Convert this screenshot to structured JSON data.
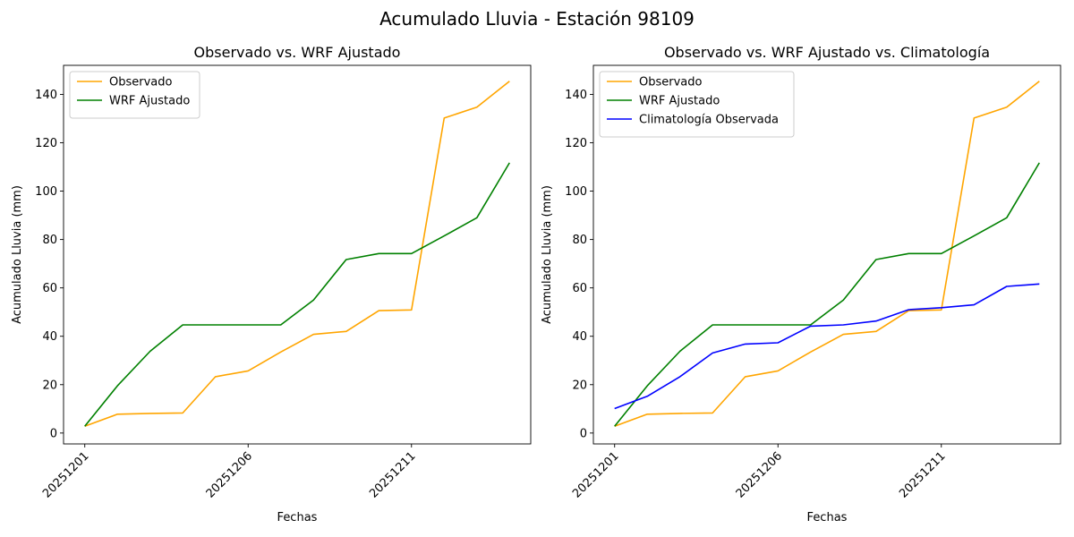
{
  "figure_title": "Acumulado Lluvia - Estación 98109",
  "colors": {
    "Observado": "#ffa500",
    "WRF Ajustado": "#008000",
    "Climatología Observada": "#0000ff"
  },
  "chart_data": [
    {
      "type": "line",
      "title": "Observado vs. WRF Ajustado",
      "xlabel": "Fechas",
      "ylabel": "Acumulado Lluvia (mm)",
      "x": [
        "20251201",
        "20251202",
        "20251203",
        "20251204",
        "20251205",
        "20251206",
        "20251207",
        "20251208",
        "20251209",
        "20251210",
        "20251211",
        "20251212",
        "20251213",
        "20251214"
      ],
      "xticks": [
        "20251201",
        "20251206",
        "20251211"
      ],
      "ylim": [
        -4.5,
        152
      ],
      "yticks": [
        0,
        20,
        40,
        60,
        80,
        100,
        120,
        140
      ],
      "grid": false,
      "legend_position": "upper left",
      "series": [
        {
          "name": "Observado",
          "color": "#ffa500",
          "values": [
            2.8,
            7.8,
            8.1,
            8.3,
            23.3,
            25.7,
            33.5,
            40.8,
            42.0,
            50.6,
            50.9,
            130.2,
            134.7,
            145.4
          ]
        },
        {
          "name": "WRF Ajustado",
          "color": "#008000",
          "values": [
            2.8,
            19.5,
            33.8,
            44.7,
            44.7,
            44.7,
            44.7,
            55.0,
            71.7,
            74.2,
            74.2,
            81.5,
            89.0,
            111.7
          ]
        }
      ]
    },
    {
      "type": "line",
      "title": "Observado vs. WRF Ajustado vs. Climatología",
      "xlabel": "Fechas",
      "ylabel": "Acumulado Lluvia (mm)",
      "x": [
        "20251201",
        "20251202",
        "20251203",
        "20251204",
        "20251205",
        "20251206",
        "20251207",
        "20251208",
        "20251209",
        "20251210",
        "20251211",
        "20251212",
        "20251213",
        "20251214"
      ],
      "xticks": [
        "20251201",
        "20251206",
        "20251211"
      ],
      "ylim": [
        -4.5,
        152
      ],
      "yticks": [
        0,
        20,
        40,
        60,
        80,
        100,
        120,
        140
      ],
      "grid": false,
      "legend_position": "upper left",
      "series": [
        {
          "name": "Observado",
          "color": "#ffa500",
          "values": [
            2.8,
            7.8,
            8.1,
            8.3,
            23.3,
            25.7,
            33.5,
            40.8,
            42.0,
            50.6,
            50.9,
            130.2,
            134.7,
            145.4
          ]
        },
        {
          "name": "WRF Ajustado",
          "color": "#008000",
          "values": [
            2.8,
            19.5,
            33.8,
            44.7,
            44.7,
            44.7,
            44.7,
            55.0,
            71.7,
            74.2,
            74.2,
            81.5,
            89.0,
            111.7
          ]
        },
        {
          "name": "Climatología Observada",
          "color": "#0000ff",
          "values": [
            10.1,
            15.2,
            23.3,
            33.1,
            36.8,
            37.3,
            44.2,
            44.7,
            46.3,
            51.0,
            51.8,
            53.0,
            60.6,
            61.6
          ]
        }
      ]
    }
  ]
}
